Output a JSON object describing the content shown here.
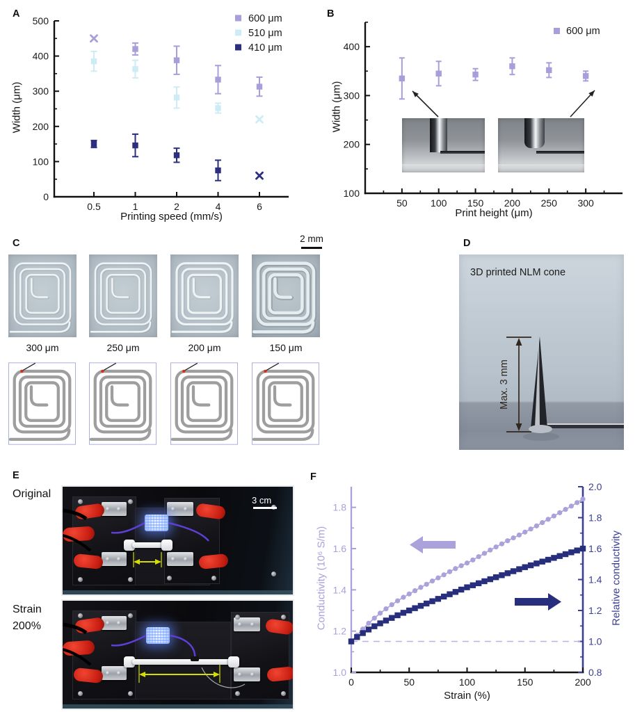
{
  "panels": {
    "a": {
      "letter": "A"
    },
    "b": {
      "letter": "B"
    },
    "c": {
      "letter": "C",
      "scale_bar": "2 mm",
      "items": [
        {
          "label": "300 μm"
        },
        {
          "label": "250 μm"
        },
        {
          "label": "200 μm"
        },
        {
          "label": "150 μm"
        }
      ]
    },
    "d": {
      "letter": "D",
      "caption": "3D printed NLM cone",
      "dimension": "Max. 3 mm"
    },
    "e": {
      "letter": "E",
      "label_top": "Original",
      "label_bottom_line1": "Strain",
      "label_bottom_line2": "200%",
      "scale_bar": "3 cm"
    },
    "f": {
      "letter": "F"
    }
  },
  "chart_data": {
    "panel_a": {
      "type": "scatter",
      "title": "",
      "xlabel": "Printing speed (mm/s)",
      "ylabel": "Width (μm)",
      "x_categories": [
        "0.5",
        "1",
        "2",
        "4",
        "6"
      ],
      "ylim": [
        0,
        500
      ],
      "yticks": [
        0,
        100,
        200,
        300,
        400,
        500
      ],
      "legend_position": "top-right",
      "series": [
        {
          "name": "600 μm",
          "color": "#a79fd9",
          "marker": "square",
          "points": [
            {
              "x": "0.5",
              "y": 450,
              "err": 0,
              "marker": "x"
            },
            {
              "x": "1",
              "y": 420,
              "err": 17
            },
            {
              "x": "2",
              "y": 388,
              "err": 40
            },
            {
              "x": "4",
              "y": 333,
              "err": 40
            },
            {
              "x": "6",
              "y": 313,
              "err": 27
            }
          ]
        },
        {
          "name": "510 μm",
          "color": "#cdecf6",
          "marker": "square",
          "points": [
            {
              "x": "0.5",
              "y": 385,
              "err": 28
            },
            {
              "x": "1",
              "y": 363,
              "err": 25
            },
            {
              "x": "2",
              "y": 282,
              "err": 30
            },
            {
              "x": "4",
              "y": 252,
              "err": 14
            },
            {
              "x": "6",
              "y": 220,
              "err": 0,
              "marker": "x"
            }
          ]
        },
        {
          "name": "410 μm",
          "color": "#2b2f7e",
          "marker": "square",
          "points": [
            {
              "x": "0.5",
              "y": 150,
              "err": 10
            },
            {
              "x": "1",
              "y": 146,
              "err": 32
            },
            {
              "x": "2",
              "y": 118,
              "err": 20
            },
            {
              "x": "4",
              "y": 75,
              "err": 29
            },
            {
              "x": "6",
              "y": 60,
              "err": 0,
              "marker": "x"
            }
          ]
        }
      ]
    },
    "panel_b": {
      "type": "scatter",
      "title": "",
      "xlabel": "Print height (μm)",
      "ylabel": "Width (μm)",
      "xlim": [
        0,
        350
      ],
      "xticks": [
        50,
        100,
        150,
        200,
        250,
        300
      ],
      "ylim": [
        100,
        450
      ],
      "yticks": [
        100,
        200,
        300,
        400
      ],
      "legend_position": "top-right",
      "series": [
        {
          "name": "600 μm",
          "color": "#a79fd9",
          "marker": "square",
          "points": [
            {
              "x": 50,
              "y": 335,
              "err": 42
            },
            {
              "x": 100,
              "y": 345,
              "err": 25
            },
            {
              "x": 150,
              "y": 343,
              "err": 12
            },
            {
              "x": 200,
              "y": 360,
              "err": 17
            },
            {
              "x": 250,
              "y": 352,
              "err": 15
            },
            {
              "x": 300,
              "y": 340,
              "err": 10
            }
          ]
        }
      ]
    },
    "panel_f": {
      "type": "line",
      "title": "",
      "xlabel": "Strain (%)",
      "ylabel_left": "Conductivity (10⁶ S/m)",
      "ylabel_right": "Relative conductivity",
      "xlim": [
        0,
        200
      ],
      "xticks": [
        0,
        50,
        100,
        150,
        200
      ],
      "ylim_left": [
        1.0,
        1.9
      ],
      "yticks_left": [
        1.0,
        1.2,
        1.4,
        1.6,
        1.8
      ],
      "ylim_right": [
        0.8,
        2.0
      ],
      "yticks_right": [
        0.8,
        1.0,
        1.2,
        1.4,
        1.6,
        1.8,
        2.0
      ],
      "baseline_right": 1.0,
      "baseline_style": "dashed",
      "baseline_color": "#b9b2e2",
      "left_color": "#a9a1da",
      "right_color": "#3c3e92",
      "bottom_color": "#111111",
      "x_step": 5,
      "series": [
        {
          "name": "Conductivity",
          "axis": "left",
          "color": "#aba2db",
          "marker": "circle",
          "values": [
            1.15,
            1.18,
            1.21,
            1.238,
            1.263,
            1.287,
            1.308,
            1.328,
            1.347,
            1.364,
            1.38,
            1.396,
            1.412,
            1.427,
            1.443,
            1.458,
            1.473,
            1.488,
            1.503,
            1.517,
            1.53,
            1.545,
            1.561,
            1.577,
            1.593,
            1.608,
            1.623,
            1.638,
            1.652,
            1.666,
            1.68,
            1.695,
            1.71,
            1.726,
            1.742,
            1.758,
            1.774,
            1.79,
            1.806,
            1.823,
            1.84
          ]
        },
        {
          "name": "Relative conductivity",
          "axis": "right",
          "color": "#272e7c",
          "marker": "square",
          "values": [
            1.0,
            1.028,
            1.054,
            1.077,
            1.098,
            1.117,
            1.135,
            1.152,
            1.169,
            1.185,
            1.2,
            1.215,
            1.23,
            1.245,
            1.26,
            1.275,
            1.29,
            1.305,
            1.32,
            1.335,
            1.35,
            1.363,
            1.376,
            1.389,
            1.402,
            1.415,
            1.428,
            1.441,
            1.454,
            1.467,
            1.48,
            1.492,
            1.504,
            1.516,
            1.528,
            1.54,
            1.552,
            1.564,
            1.576,
            1.588,
            1.6
          ]
        }
      ]
    }
  }
}
